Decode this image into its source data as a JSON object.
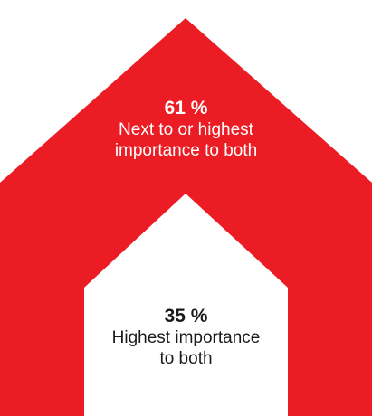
{
  "colors": {
    "outer_fill": "#ec1c24",
    "inner_fill": "#ffffff"
  },
  "outer": {
    "percent": "61 %",
    "line1": "Next to or highest",
    "line2": "importance to both"
  },
  "inner": {
    "percent": "35 %",
    "line1": "Highest importance",
    "line2": "to both"
  }
}
